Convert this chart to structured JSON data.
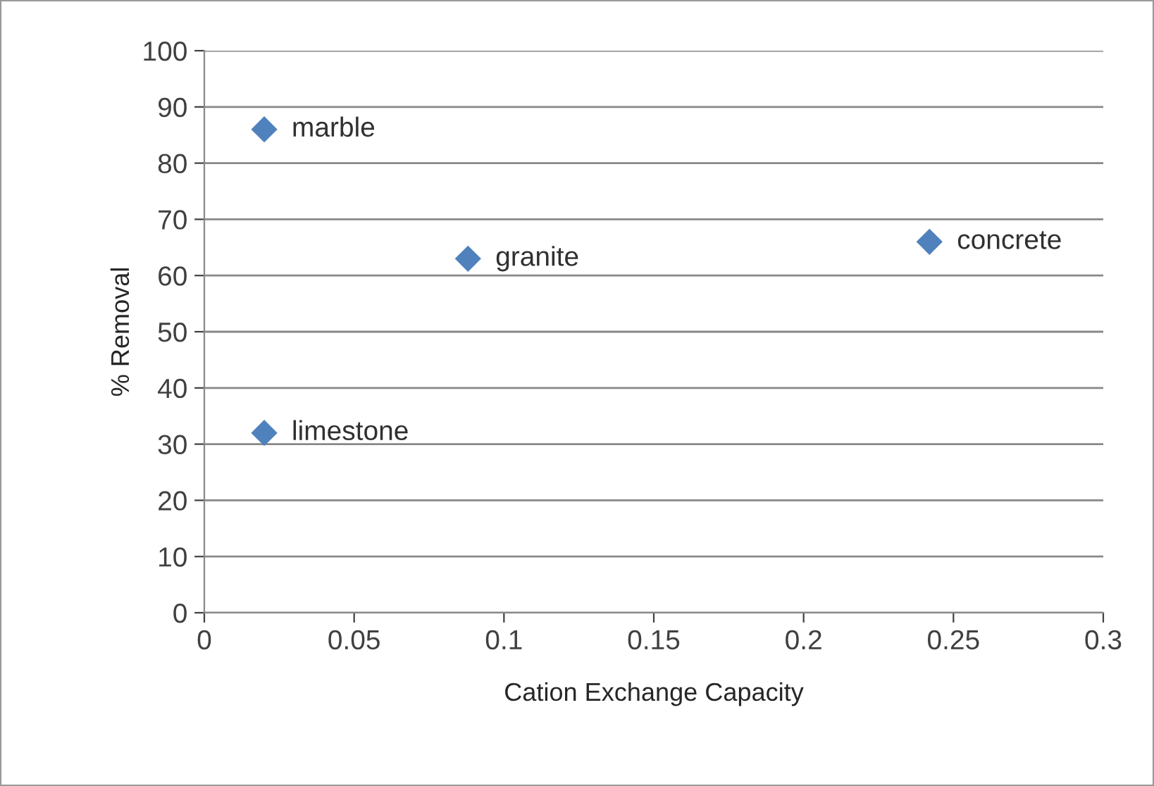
{
  "chart_data": {
    "type": "scatter",
    "xlabel": "Cation Exchange Capacity",
    "ylabel": "% Removal",
    "x": [
      0.02,
      0.088,
      0.242,
      0.02
    ],
    "series": [
      {
        "color": "#4f81bd",
        "values": [
          86,
          63,
          66,
          32
        ]
      }
    ],
    "marker": "diamond",
    "xlim": [
      0,
      0.3
    ],
    "xticks": [
      0,
      0.05,
      0.1,
      0.15,
      0.2,
      0.25,
      0.3
    ],
    "ylim": [
      0,
      100
    ],
    "yticks": [
      0,
      10,
      20,
      30,
      40,
      50,
      60,
      70,
      80,
      90,
      100
    ],
    "grid": "y",
    "annotations": [
      {
        "text": "marble",
        "x": 0.02,
        "y": 86
      },
      {
        "text": "granite",
        "x": 0.088,
        "y": 63
      },
      {
        "text": "concrete",
        "x": 0.242,
        "y": 66
      },
      {
        "text": "limestone",
        "x": 0.02,
        "y": 32
      }
    ]
  }
}
